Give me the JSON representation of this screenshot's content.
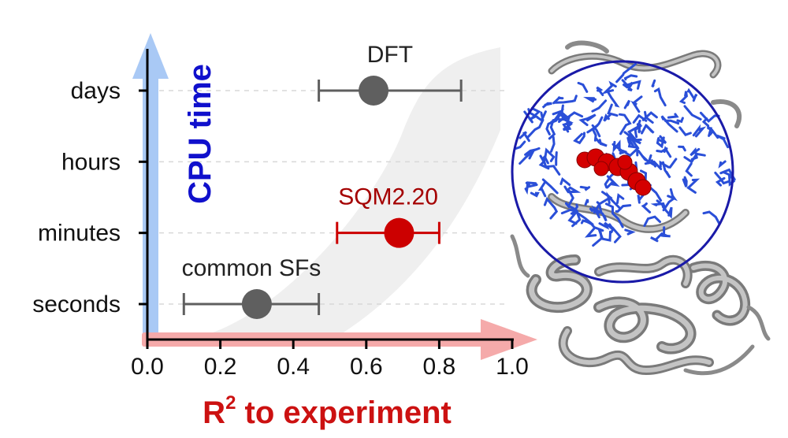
{
  "chart_data": {
    "type": "scatter",
    "title": "",
    "xlabel": "R",
    "xlabel_sup": "2",
    "xlabel_rest": " to experiment",
    "ylabel": "CPU time",
    "xlim": [
      0.0,
      1.0
    ],
    "x_ticks": [
      "0.0",
      "0.2",
      "0.4",
      "0.6",
      "0.8",
      "1.0"
    ],
    "y_categories": [
      "seconds",
      "minutes",
      "hours",
      "days"
    ],
    "grid": "horizontal dashed",
    "points": [
      {
        "label": "DFT",
        "y": "days",
        "x": 0.62,
        "x_low": 0.47,
        "x_high": 0.86,
        "color": "#5f5f5f",
        "label_color": "#222222"
      },
      {
        "label": "SQM2.20",
        "y": "minutes",
        "x": 0.69,
        "x_low": 0.52,
        "x_high": 0.8,
        "color": "#cc0000",
        "label_color": "#a40000"
      },
      {
        "label": "common SFs",
        "y": "seconds",
        "x": 0.3,
        "x_low": 0.1,
        "x_high": 0.47,
        "color": "#5f5f5f",
        "label_color": "#222222"
      }
    ],
    "colors": {
      "ylabel": "#1010cc",
      "xlabel": "#cc1111",
      "y_arrow": "#a9c9f5",
      "x_arrow": "#f5aaaa",
      "band": "#efefef"
    },
    "illustration": "protein-ligand-structure"
  }
}
